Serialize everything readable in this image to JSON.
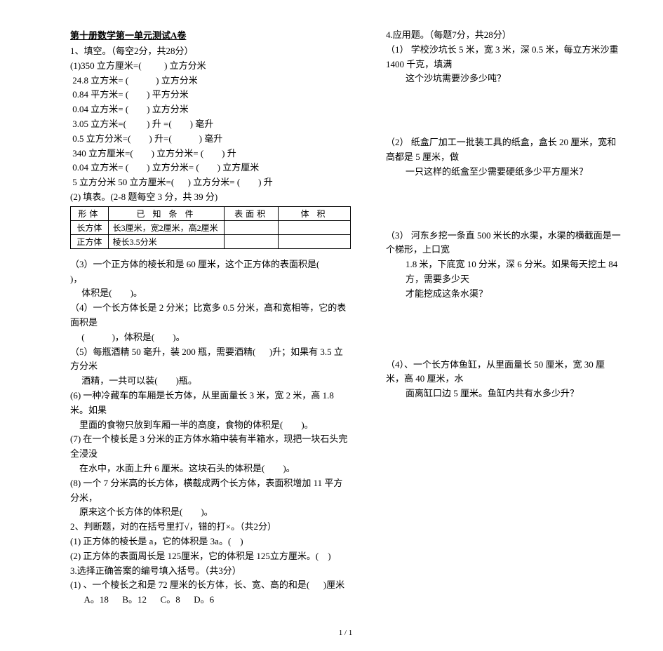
{
  "left": {
    "title": "第十册数学第一单元测试A卷",
    "sec1_heading": "1、填空。（每空2分，共28分）",
    "l1": "(1)350 立方厘米=(          ) 立方分米",
    "l2": " 24.8 立方米= (            ) 立方分米",
    "l3": " 0.84 平方米= (        ) 平方分米",
    "l4": " 0.04 立方米= (        ) 立方分米",
    "l5": " 3.05 立方米=(         ) 升 =(        ) 毫升",
    "l6": " 0.5 立方分米=(        ) 升=(            ) 毫升",
    "l7": " 340 立方厘米=(        ) 立方分米= (        ) 升",
    "l8": " 0.04 立方米= (        ) 立方分米= (        ) 立方厘米",
    "l9": " 5 立方分米 50 立方厘米=(      ) 立方分米= (        ) 升",
    "sec2_heading": "(2) 填表。(2-8 题每空 3 分，共 39 分)",
    "table": {
      "headers": [
        "形体",
        "已  知  条  件",
        "表面积",
        "体  积"
      ],
      "rows": [
        [
          "长方体",
          "长3厘米，宽2厘米，高2厘米",
          "",
          ""
        ],
        [
          "正方体",
          "棱长3.5分米",
          "",
          ""
        ]
      ],
      "col_widths": [
        "44px",
        "170px",
        "70px",
        "100px"
      ]
    },
    "q3a": "（3）一个正方体的棱长和是 60 厘米，这个正方体的表面积是(            )，",
    "q3b": "     体积是(        )。",
    "q4a": "（4）一个长方体长是 2 分米；比宽多 0.5 分米，高和宽相等，它的表面积是",
    "q4b": "     (            )，体积是(        )。",
    "q5a": "（5）每瓶酒精 50 毫升，装 200 瓶，需要酒精(      )升；如果有 3.5 立方分米",
    "q5b": "     酒精，一共可以装(        )瓶。",
    "q6a": "(6) 一种冷藏车的车厢是长方体，从里面量长 3 米，宽 2 米，高 1.8 米。如果",
    "q6b": "    里面的食物只放到车厢一半的高度，食物的体积是(        )。",
    "q7a": "(7) 在一个棱长是 3 分米的正方体水箱中装有半箱水，现把一块石头完全浸没",
    "q7b": "    在水中，水面上升 6 厘米。这块石头的体积是(        )。",
    "q8a": "(8) 一个 7 分米高的长方体，横截成两个长方体，表面积增加 11 平方分米，",
    "q8b": "    原来这个长方体的体积是(        )。",
    "sec_judge": "2、判断题，对的在括号里打√，错的打×。（共2分）",
    "j1": "(1) 正方体的棱长是 a，它的体积是 3a。(    )",
    "j2": "(2) 正方体的表面周长是 125厘米，它的体积是 125立方厘米。(    )",
    "sec_choice": "3.选择正确答案的编号填入括号。（共3分）",
    "c1a": "(1) 、一个棱长之和是 72 厘米的长方体，长、宽、高的和是(      )厘米",
    "c1b": "      A。18      B。12      C。8      D。6"
  },
  "right": {
    "sec4": "4.应用题。（每题7分，共28分）",
    "r1a": "（1） 学校沙坑长 5 米，宽 3 米，深 0.5 米，每立方米沙重 1400 千克，填满",
    "r1b": "这个沙坑需要沙多少吨？",
    "r2a": "（2） 纸盒厂加工一批装工具的纸盒，盒长 20 厘米，宽和高都是 5 厘米，做",
    "r2b": "一只这样的纸盒至少需要硬纸多少平方厘米？",
    "r3a": "（3） 河东乡挖一条直 500 米长的水渠，水渠的横截面是一个梯形，上口宽",
    "r3b": "1.8 米，下底宽 10 分米，深 6 分米。如果每天挖土 84 方，需要多少天",
    "r3c": "才能挖成这条水渠？",
    "r4a": "（4）、一个长方体鱼缸，从里面量长 50 厘米，宽 30 厘米，高 40 厘米，水",
    "r4b": "面离缸口边 5 厘米。鱼缸内共有水多少升？"
  },
  "footer": "1 / 1"
}
